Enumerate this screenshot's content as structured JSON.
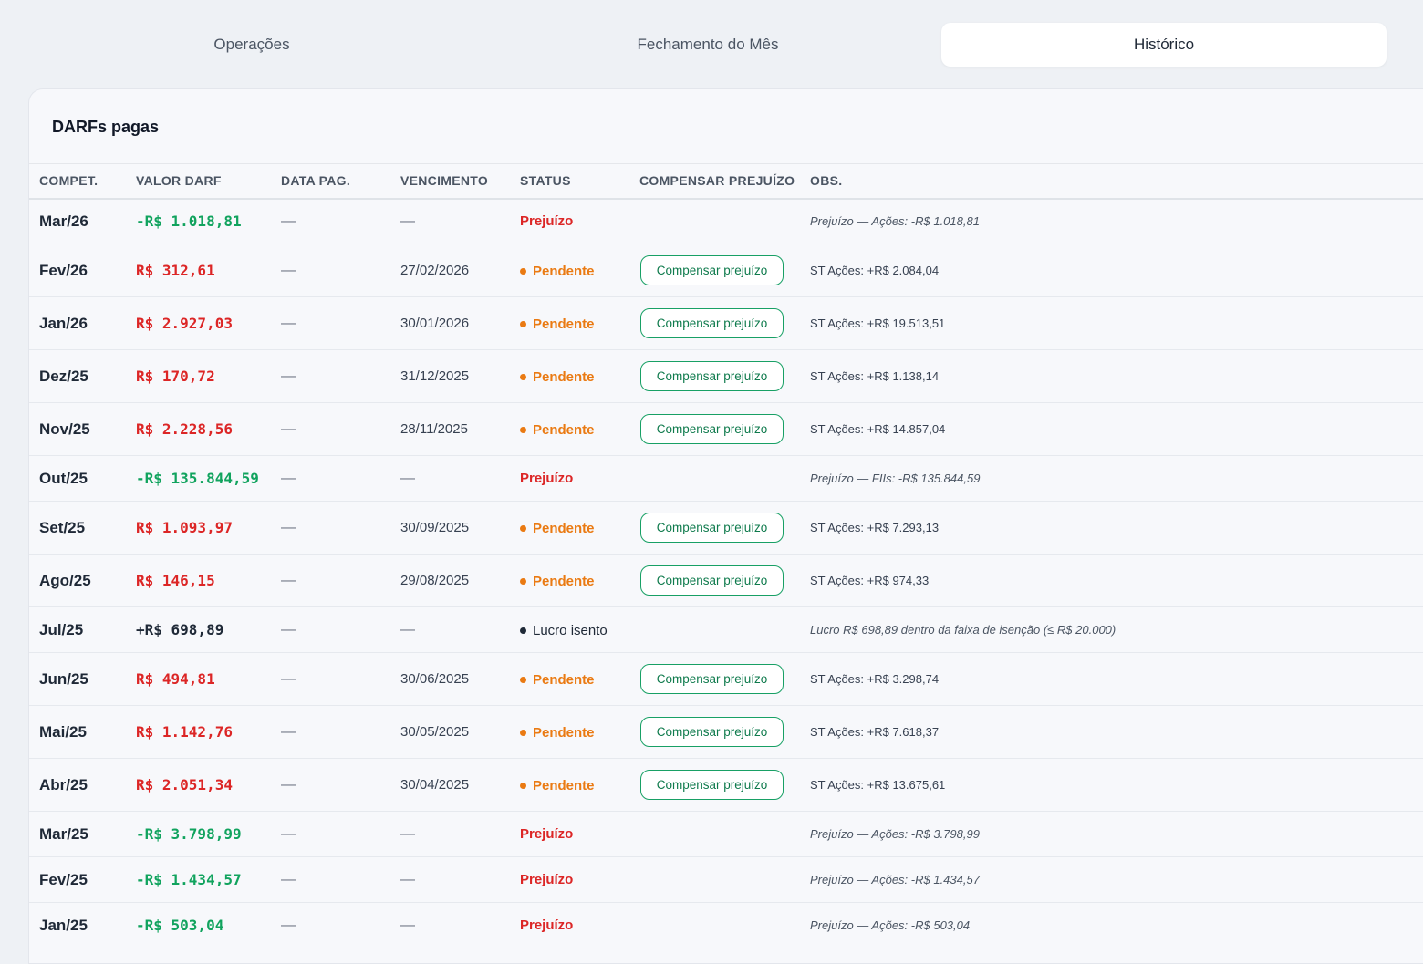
{
  "tabs": [
    {
      "label": "Operações"
    },
    {
      "label": "Fechamento do Mês"
    },
    {
      "label": "Histórico"
    }
  ],
  "card": {
    "title": "DARFs pagas"
  },
  "columns": [
    "COMPET.",
    "VALOR DARF",
    "DATA PAG.",
    "VENCIMENTO",
    "STATUS",
    "COMPENSAR PREJUÍZO",
    "OBS."
  ],
  "colors": {
    "loss_value": "#11a35e",
    "due_value": "#dc2626",
    "exempt_value": "#1f2937",
    "pendente": "#ea7a12",
    "prejuizo": "#dc2626",
    "isento": "#1f2937",
    "button_border": "#18a065"
  },
  "rows": [
    {
      "comp": "Mar/26",
      "valor": "-R$ 1.018,81",
      "kind": "loss",
      "data_pag": "—",
      "venc": "—",
      "status": "Prejuízo",
      "button": "",
      "obs": "Prejuízo — Ações: -R$ 1.018,81"
    },
    {
      "comp": "Fev/26",
      "valor": "R$ 312,61",
      "kind": "due",
      "data_pag": "—",
      "venc": "27/02/2026",
      "status": "Pendente",
      "button": "Compensar prejuízo",
      "obs": "ST Ações: +R$ 2.084,04"
    },
    {
      "comp": "Jan/26",
      "valor": "R$ 2.927,03",
      "kind": "due",
      "data_pag": "—",
      "venc": "30/01/2026",
      "status": "Pendente",
      "button": "Compensar prejuízo",
      "obs": "ST Ações: +R$ 19.513,51"
    },
    {
      "comp": "Dez/25",
      "valor": "R$ 170,72",
      "kind": "due",
      "data_pag": "—",
      "venc": "31/12/2025",
      "status": "Pendente",
      "button": "Compensar prejuízo",
      "obs": "ST Ações: +R$ 1.138,14"
    },
    {
      "comp": "Nov/25",
      "valor": "R$ 2.228,56",
      "kind": "due",
      "data_pag": "—",
      "venc": "28/11/2025",
      "status": "Pendente",
      "button": "Compensar prejuízo",
      "obs": "ST Ações: +R$ 14.857,04"
    },
    {
      "comp": "Out/25",
      "valor": "-R$ 135.844,59",
      "kind": "loss",
      "data_pag": "—",
      "venc": "—",
      "status": "Prejuízo",
      "button": "",
      "obs": "Prejuízo — FIIs: -R$ 135.844,59"
    },
    {
      "comp": "Set/25",
      "valor": "R$ 1.093,97",
      "kind": "due",
      "data_pag": "—",
      "venc": "30/09/2025",
      "status": "Pendente",
      "button": "Compensar prejuízo",
      "obs": "ST Ações: +R$ 7.293,13"
    },
    {
      "comp": "Ago/25",
      "valor": "R$ 146,15",
      "kind": "due",
      "data_pag": "—",
      "venc": "29/08/2025",
      "status": "Pendente",
      "button": "Compensar prejuízo",
      "obs": "ST Ações: +R$ 974,33"
    },
    {
      "comp": "Jul/25",
      "valor": "+R$ 698,89",
      "kind": "exempt",
      "data_pag": "—",
      "venc": "—",
      "status": "Lucro isento",
      "button": "",
      "obs": "Lucro R$ 698,89 dentro da faixa de isenção (≤ R$ 20.000)"
    },
    {
      "comp": "Jun/25",
      "valor": "R$ 494,81",
      "kind": "due",
      "data_pag": "—",
      "venc": "30/06/2025",
      "status": "Pendente",
      "button": "Compensar prejuízo",
      "obs": "ST Ações: +R$ 3.298,74"
    },
    {
      "comp": "Mai/25",
      "valor": "R$ 1.142,76",
      "kind": "due",
      "data_pag": "—",
      "venc": "30/05/2025",
      "status": "Pendente",
      "button": "Compensar prejuízo",
      "obs": "ST Ações: +R$ 7.618,37"
    },
    {
      "comp": "Abr/25",
      "valor": "R$ 2.051,34",
      "kind": "due",
      "data_pag": "—",
      "venc": "30/04/2025",
      "status": "Pendente",
      "button": "Compensar prejuízo",
      "obs": "ST Ações: +R$ 13.675,61"
    },
    {
      "comp": "Mar/25",
      "valor": "-R$ 3.798,99",
      "kind": "loss",
      "data_pag": "—",
      "venc": "—",
      "status": "Prejuízo",
      "button": "",
      "obs": "Prejuízo — Ações: -R$ 3.798,99"
    },
    {
      "comp": "Fev/25",
      "valor": "-R$ 1.434,57",
      "kind": "loss",
      "data_pag": "—",
      "venc": "—",
      "status": "Prejuízo",
      "button": "",
      "obs": "Prejuízo — Ações: -R$ 1.434,57"
    },
    {
      "comp": "Jan/25",
      "valor": "-R$ 503,04",
      "kind": "loss",
      "data_pag": "—",
      "venc": "—",
      "status": "Prejuízo",
      "button": "",
      "obs": "Prejuízo — Ações: -R$ 503,04"
    }
  ]
}
